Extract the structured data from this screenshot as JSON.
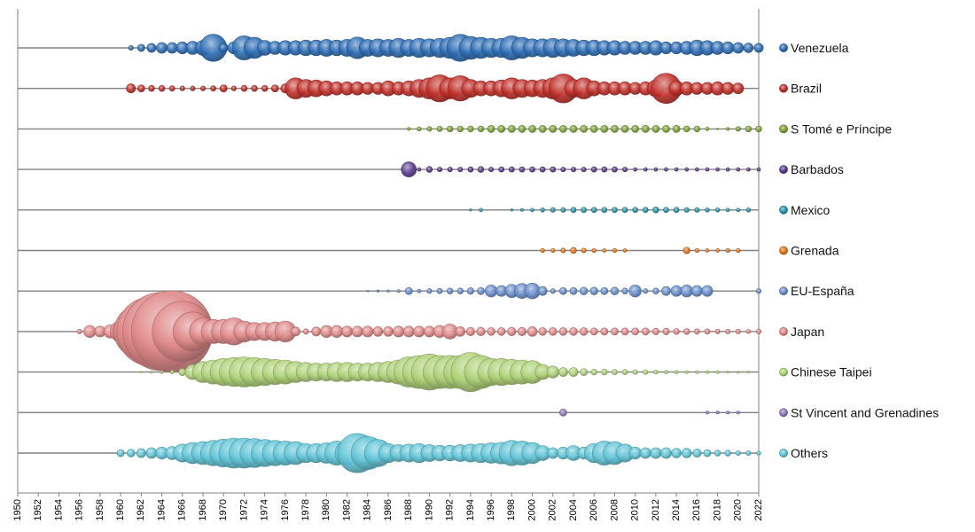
{
  "chart_data": {
    "type": "bubble",
    "xlim": [
      1950,
      2022
    ],
    "x_ticks": [
      1950,
      1952,
      1954,
      1956,
      1958,
      1960,
      1962,
      1964,
      1966,
      1968,
      1970,
      1972,
      1974,
      1976,
      1978,
      1980,
      1982,
      1984,
      1986,
      1988,
      1990,
      1992,
      1994,
      1996,
      1998,
      2000,
      2002,
      2004,
      2006,
      2008,
      2010,
      2012,
      2014,
      2016,
      2018,
      2020,
      2022
    ],
    "legend_position": "right",
    "series": [
      {
        "name": "Venezuela",
        "color": "#2e6db4",
        "x": [
          1961,
          1962,
          1963,
          1964,
          1965,
          1966,
          1967,
          1968,
          1969,
          1970,
          1971,
          1972,
          1973,
          1974,
          1975,
          1976,
          1977,
          1978,
          1979,
          1980,
          1981,
          1982,
          1983,
          1984,
          1985,
          1986,
          1987,
          1988,
          1989,
          1990,
          1991,
          1992,
          1993,
          1994,
          1995,
          1996,
          1997,
          1998,
          1999,
          2000,
          2001,
          2002,
          2003,
          2004,
          2005,
          2006,
          2007,
          2008,
          2009,
          2010,
          2011,
          2012,
          2013,
          2014,
          2015,
          2016,
          2017,
          2018,
          2019,
          2020,
          2021,
          2022
        ],
        "values": [
          0.8,
          1.2,
          1.5,
          1.8,
          1.8,
          2.0,
          2.2,
          2.5,
          4.5,
          1.5,
          2.0,
          4.0,
          3.5,
          2.5,
          2.2,
          2.4,
          2.4,
          2.6,
          2.6,
          2.8,
          2.6,
          2.8,
          3.6,
          2.8,
          3.0,
          2.8,
          3.2,
          2.8,
          3.2,
          3.0,
          3.2,
          3.5,
          4.5,
          3.8,
          3.5,
          3.2,
          3.2,
          4.0,
          3.5,
          3.0,
          3.0,
          3.2,
          3.0,
          2.8,
          2.6,
          2.6,
          2.4,
          2.4,
          2.2,
          2.2,
          2.2,
          2.4,
          2.0,
          2.0,
          2.2,
          2.6,
          2.4,
          2.2,
          2.0,
          1.8,
          1.6,
          1.5
        ]
      },
      {
        "name": "Brazil",
        "color": "#c0302a",
        "x": [
          1961,
          1962,
          1963,
          1964,
          1965,
          1966,
          1967,
          1968,
          1969,
          1970,
          1971,
          1972,
          1973,
          1974,
          1975,
          1976,
          1977,
          1978,
          1979,
          1980,
          1981,
          1982,
          1983,
          1984,
          1985,
          1986,
          1987,
          1988,
          1989,
          1990,
          1991,
          1992,
          1993,
          1994,
          1995,
          1996,
          1997,
          1998,
          1999,
          2000,
          2001,
          2002,
          2003,
          2004,
          2005,
          2006,
          2007,
          2008,
          2009,
          2010,
          2011,
          2012,
          2013,
          2014,
          2015,
          2016,
          2017,
          2018,
          2019,
          2020
        ],
        "values": [
          1.5,
          1.2,
          1.0,
          1.0,
          0.9,
          0.8,
          0.8,
          0.8,
          0.9,
          1.2,
          0.8,
          1.0,
          1.0,
          1.0,
          1.2,
          1.5,
          3.5,
          3.0,
          2.8,
          2.5,
          2.2,
          2.2,
          2.2,
          2.0,
          2.0,
          2.5,
          2.2,
          2.5,
          3.0,
          3.5,
          4.5,
          3.5,
          4.2,
          3.0,
          2.5,
          2.5,
          2.8,
          3.5,
          3.0,
          2.8,
          3.0,
          3.5,
          4.8,
          3.0,
          3.5,
          2.5,
          2.2,
          2.2,
          2.2,
          2.0,
          2.2,
          2.8,
          5.0,
          2.5,
          2.2,
          2.0,
          2.0,
          2.2,
          2.0,
          1.8
        ]
      },
      {
        "name": "S Tomé e Príncipe",
        "color": "#7fa53a",
        "x": [
          1988,
          1989,
          1990,
          1991,
          1992,
          1993,
          1994,
          1995,
          1996,
          1997,
          1998,
          1999,
          2000,
          2001,
          2002,
          2003,
          2004,
          2005,
          2006,
          2007,
          2008,
          2009,
          2010,
          2011,
          2012,
          2013,
          2014,
          2015,
          2016,
          2017,
          2018,
          2019,
          2020,
          2021,
          2022
        ],
        "values": [
          0.5,
          0.7,
          0.8,
          0.9,
          1.0,
          1.0,
          1.0,
          1.0,
          1.2,
          1.2,
          1.2,
          1.2,
          1.2,
          1.2,
          1.2,
          1.2,
          1.2,
          1.2,
          1.2,
          1.2,
          1.2,
          1.2,
          1.2,
          1.2,
          1.2,
          1.2,
          1.2,
          1.0,
          1.0,
          0.6,
          0.3,
          0.5,
          0.8,
          1.0,
          1.0
        ]
      },
      {
        "name": "Barbados",
        "color": "#5b3c8c",
        "x": [
          1988,
          1989,
          1990,
          1991,
          1992,
          1993,
          1994,
          1995,
          1996,
          1997,
          1998,
          1999,
          2000,
          2001,
          2002,
          2003,
          2004,
          2005,
          2006,
          2007,
          2008,
          2009,
          2010,
          2011,
          2012,
          2013,
          2014,
          2015,
          2016,
          2017,
          2018,
          2019,
          2020,
          2021,
          2022
        ],
        "values": [
          2.5,
          0.6,
          1.0,
          0.8,
          0.8,
          0.8,
          0.9,
          1.0,
          0.8,
          0.9,
          0.9,
          0.9,
          0.9,
          0.9,
          0.9,
          0.8,
          0.8,
          0.8,
          0.9,
          0.9,
          0.9,
          0.8,
          0.6,
          0.6,
          0.6,
          0.6,
          0.6,
          0.6,
          0.6,
          0.6,
          0.6,
          0.6,
          0.6,
          0.6,
          0.6
        ]
      },
      {
        "name": "Mexico",
        "color": "#2b95ad",
        "x": [
          1994,
          1995,
          1998,
          1999,
          2000,
          2001,
          2002,
          2003,
          2004,
          2005,
          2006,
          2007,
          2008,
          2009,
          2010,
          2011,
          2012,
          2013,
          2014,
          2015,
          2016,
          2017,
          2018,
          2019,
          2020,
          2021
        ],
        "values": [
          0.4,
          0.6,
          0.4,
          0.5,
          0.6,
          0.7,
          0.8,
          0.8,
          0.9,
          0.9,
          0.9,
          0.9,
          0.9,
          0.9,
          0.9,
          0.9,
          1.0,
          0.9,
          0.9,
          0.8,
          0.8,
          0.7,
          0.7,
          0.6,
          0.6,
          0.7
        ]
      },
      {
        "name": "Grenada",
        "color": "#e07820",
        "x": [
          2001,
          2002,
          2003,
          2004,
          2005,
          2006,
          2007,
          2008,
          2009,
          2015,
          2016,
          2017,
          2018,
          2019,
          2020
        ],
        "values": [
          0.7,
          0.7,
          0.8,
          1.0,
          0.8,
          0.7,
          0.6,
          0.7,
          0.6,
          1.1,
          0.7,
          0.6,
          0.6,
          0.7,
          0.7
        ]
      },
      {
        "name": "EU-España",
        "color": "#6a8fcc",
        "x": [
          1984,
          1985,
          1986,
          1987,
          1988,
          1989,
          1990,
          1991,
          1992,
          1993,
          1994,
          1995,
          1996,
          1997,
          1998,
          1999,
          2000,
          2001,
          2002,
          2003,
          2004,
          2005,
          2006,
          2007,
          2008,
          2009,
          2010,
          2011,
          2012,
          2013,
          2014,
          2015,
          2016,
          2017,
          2022
        ],
        "values": [
          0.3,
          0.4,
          0.4,
          0.5,
          1.2,
          0.6,
          0.8,
          0.9,
          1.0,
          1.0,
          1.1,
          1.2,
          2.0,
          1.8,
          2.2,
          2.5,
          2.6,
          1.5,
          0.8,
          1.2,
          1.2,
          1.3,
          1.3,
          1.2,
          1.3,
          1.0,
          2.0,
          0.8,
          1.0,
          1.5,
          1.8,
          2.0,
          1.8,
          1.8,
          0.8
        ]
      },
      {
        "name": "Japan",
        "color": "#e08a8a",
        "x": [
          1956,
          1957,
          1958,
          1959,
          1960,
          1961,
          1962,
          1963,
          1964,
          1965,
          1966,
          1967,
          1968,
          1969,
          1970,
          1971,
          1972,
          1973,
          1974,
          1975,
          1976,
          1977,
          1978,
          1979,
          1980,
          1981,
          1982,
          1983,
          1984,
          1985,
          1986,
          1987,
          1988,
          1989,
          1990,
          1991,
          1992,
          1993,
          1994,
          1995,
          1996,
          1997,
          1998,
          1999,
          2000,
          2001,
          2002,
          2003,
          2004,
          2005,
          2006,
          2007,
          2008,
          2009,
          2010,
          2011,
          2012,
          2013,
          2014,
          2015,
          2016,
          2017,
          2018,
          2019,
          2020,
          2021,
          2022
        ],
        "values": [
          0.8,
          2.0,
          1.8,
          2.2,
          3.5,
          6.0,
          9.0,
          11.5,
          13.0,
          13.5,
          10.0,
          6.5,
          4.5,
          4.0,
          4.0,
          4.5,
          3.5,
          3.0,
          3.0,
          3.2,
          3.5,
          1.5,
          0.9,
          1.5,
          2.0,
          2.0,
          1.8,
          1.8,
          1.8,
          1.6,
          1.6,
          1.8,
          1.8,
          1.8,
          1.8,
          2.0,
          2.5,
          1.6,
          1.4,
          1.4,
          1.3,
          1.3,
          1.4,
          1.4,
          1.6,
          1.3,
          1.3,
          1.3,
          1.3,
          1.3,
          1.2,
          1.2,
          1.2,
          1.2,
          1.2,
          1.2,
          1.1,
          1.1,
          1.0,
          1.0,
          0.9,
          0.9,
          0.8,
          0.8,
          0.8,
          0.7,
          0.8
        ]
      },
      {
        "name": "Chinese Taipei",
        "color": "#b0d27a",
        "x": [
          1962,
          1963,
          1964,
          1965,
          1966,
          1967,
          1968,
          1969,
          1970,
          1971,
          1972,
          1973,
          1974,
          1975,
          1976,
          1977,
          1978,
          1979,
          1980,
          1981,
          1982,
          1983,
          1984,
          1985,
          1986,
          1987,
          1988,
          1989,
          1990,
          1991,
          1992,
          1993,
          1994,
          1995,
          1996,
          1997,
          1998,
          1999,
          2000,
          2001,
          2002,
          2003,
          2004,
          2005,
          2006,
          2007,
          2008,
          2009,
          2010,
          2011,
          2012,
          2013,
          2014,
          2015,
          2016,
          2017,
          2018,
          2019,
          2020,
          2021
        ],
        "values": [
          0.3,
          0.4,
          0.5,
          0.6,
          1.2,
          2.5,
          3.5,
          4.0,
          4.5,
          4.8,
          5.0,
          4.8,
          4.5,
          4.2,
          4.0,
          3.5,
          3.2,
          3.0,
          3.0,
          3.2,
          3.2,
          3.0,
          3.0,
          3.2,
          3.5,
          4.0,
          5.0,
          5.5,
          6.0,
          5.5,
          5.5,
          5.5,
          6.5,
          5.5,
          4.5,
          4.5,
          4.2,
          4.0,
          3.8,
          2.5,
          2.0,
          1.5,
          1.5,
          1.2,
          1.0,
          1.0,
          0.9,
          0.9,
          0.8,
          0.8,
          0.7,
          0.6,
          0.6,
          0.5,
          0.5,
          0.5,
          0.5,
          0.4,
          0.4,
          0.4
        ]
      },
      {
        "name": "St Vincent and Grenadines",
        "color": "#8f7ab8",
        "x": [
          2003,
          2017,
          2018,
          2019,
          2020
        ],
        "values": [
          1.2,
          0.5,
          0.5,
          0.5,
          0.5
        ]
      },
      {
        "name": "Others",
        "color": "#64c6d8",
        "x": [
          1960,
          1961,
          1962,
          1963,
          1964,
          1965,
          1966,
          1967,
          1968,
          1969,
          1970,
          1971,
          1972,
          1973,
          1974,
          1975,
          1976,
          1977,
          1978,
          1979,
          1980,
          1981,
          1982,
          1983,
          1984,
          1985,
          1986,
          1987,
          1988,
          1989,
          1990,
          1991,
          1992,
          1993,
          1994,
          1995,
          1996,
          1997,
          1998,
          1999,
          2000,
          2001,
          2002,
          2003,
          2004,
          2005,
          2006,
          2007,
          2008,
          2009,
          2010,
          2011,
          2012,
          2013,
          2014,
          2015,
          2016,
          2017,
          2018,
          2019,
          2020,
          2021,
          2022
        ],
        "values": [
          1.2,
          1.3,
          1.5,
          1.8,
          2.0,
          2.2,
          3.0,
          3.5,
          3.8,
          4.2,
          4.6,
          5.0,
          5.0,
          4.8,
          4.5,
          4.2,
          4.0,
          3.8,
          3.2,
          3.2,
          3.4,
          4.0,
          4.0,
          6.5,
          5.5,
          4.5,
          3.2,
          2.8,
          3.0,
          3.2,
          2.8,
          2.6,
          2.6,
          2.8,
          3.0,
          3.2,
          3.4,
          3.6,
          4.2,
          4.0,
          3.5,
          2.5,
          1.8,
          2.0,
          2.5,
          2.0,
          3.2,
          4.0,
          3.8,
          3.0,
          2.0,
          1.8,
          1.8,
          1.8,
          1.6,
          1.6,
          1.4,
          1.2,
          1.0,
          1.0,
          0.8,
          0.8,
          0.7
        ]
      }
    ]
  }
}
